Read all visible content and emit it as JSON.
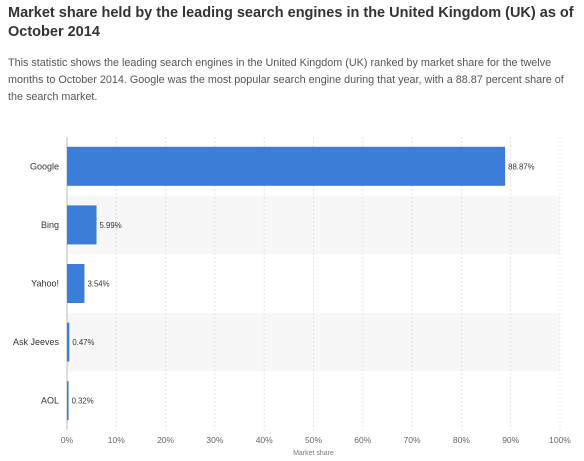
{
  "header": {
    "title": "Market share held by the leading search engines in the United Kingdom (UK) as of October 2014",
    "description": "This statistic shows the leading search engines in the United Kingdom (UK) ranked by market share for the twelve months to October 2014. Google was the most popular search engine during that year, with a 88.87 percent share of the search market."
  },
  "chart_data": {
    "type": "bar",
    "orientation": "horizontal",
    "categories": [
      "Google",
      "Bing",
      "Yahoo!",
      "Ask Jeeves",
      "AOL"
    ],
    "values": [
      88.87,
      5.99,
      3.54,
      0.47,
      0.32
    ],
    "data_labels": [
      "88.87%",
      "5.99%",
      "3.54%",
      "0.47%",
      "0.32%"
    ],
    "xlabel": "Market share",
    "xlim": [
      0,
      100
    ],
    "xticks": [
      0,
      10,
      20,
      30,
      40,
      50,
      60,
      70,
      80,
      90,
      100
    ],
    "xtick_labels": [
      "0%",
      "10%",
      "20%",
      "30%",
      "40%",
      "50%",
      "60%",
      "70%",
      "80%",
      "90%",
      "100%"
    ],
    "grid": true,
    "bar_color": "#3b7dd8",
    "alt_row_color": "#f7f7f7"
  }
}
